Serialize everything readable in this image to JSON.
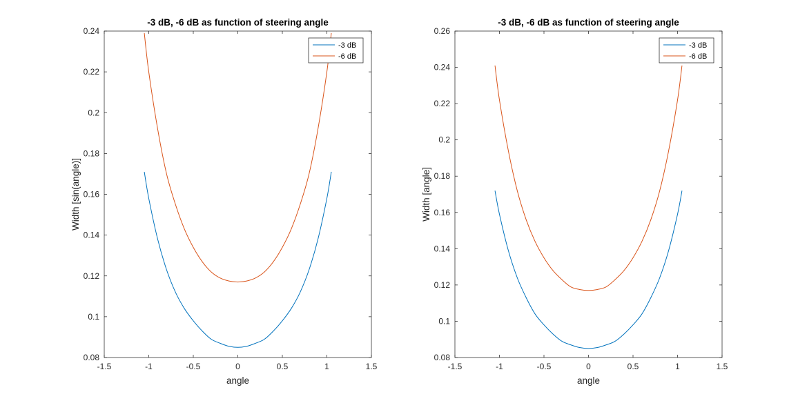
{
  "chart_data": [
    {
      "type": "line",
      "title": "-3 dB, -6 dB as function of steering angle",
      "xlabel": "angle",
      "ylabel": "Width [sin(angle)]",
      "xlim": [
        -1.5,
        1.5
      ],
      "ylim": [
        0.08,
        0.24
      ],
      "xticks": [
        -1.5,
        -1,
        -0.5,
        0,
        0.5,
        1,
        1.5
      ],
      "xtick_labels": [
        "-1.5",
        "-1",
        "-0.5",
        "0",
        "0.5",
        "1",
        "1.5"
      ],
      "yticks": [
        0.08,
        0.1,
        0.12,
        0.14,
        0.16,
        0.18,
        0.2,
        0.22,
        0.24
      ],
      "ytick_labels": [
        "0.08",
        "0.1",
        "0.12",
        "0.14",
        "0.16",
        "0.18",
        "0.2",
        "0.22",
        "0.24"
      ],
      "grid": false,
      "legend_position": "top-right",
      "series": [
        {
          "name": "-3 dB",
          "color": "#0072BD",
          "x": [
            -1.05,
            -1.0,
            -0.9,
            -0.8,
            -0.7,
            -0.6,
            -0.5,
            -0.4,
            -0.3,
            -0.2,
            -0.1,
            0,
            0.1,
            0.2,
            0.3,
            0.4,
            0.5,
            0.6,
            0.7,
            0.8,
            0.9,
            1.0,
            1.05
          ],
          "y": [
            0.171,
            0.158,
            0.138,
            0.123,
            0.112,
            0.104,
            0.098,
            0.093,
            0.089,
            0.087,
            0.0855,
            0.085,
            0.0855,
            0.087,
            0.089,
            0.093,
            0.098,
            0.104,
            0.112,
            0.123,
            0.138,
            0.158,
            0.171
          ]
        },
        {
          "name": "-6 dB",
          "color": "#D95319",
          "x": [
            -1.05,
            -1.0,
            -0.9,
            -0.8,
            -0.7,
            -0.6,
            -0.5,
            -0.4,
            -0.3,
            -0.2,
            -0.1,
            0,
            0.1,
            0.2,
            0.3,
            0.4,
            0.5,
            0.6,
            0.7,
            0.8,
            0.9,
            1.0,
            1.05
          ],
          "y": [
            0.239,
            0.22,
            0.192,
            0.17,
            0.155,
            0.143,
            0.134,
            0.127,
            0.122,
            0.119,
            0.1175,
            0.117,
            0.1175,
            0.119,
            0.122,
            0.127,
            0.134,
            0.143,
            0.155,
            0.17,
            0.192,
            0.22,
            0.239
          ]
        }
      ]
    },
    {
      "type": "line",
      "title": "-3 dB, -6 dB as function of steering angle",
      "xlabel": "angle",
      "ylabel": "Width [angle]",
      "xlim": [
        -1.5,
        1.5
      ],
      "ylim": [
        0.08,
        0.26
      ],
      "xticks": [
        -1.5,
        -1,
        -0.5,
        0,
        0.5,
        1,
        1.5
      ],
      "xtick_labels": [
        "-1.5",
        "-1",
        "-0.5",
        "0",
        "0.5",
        "1",
        "1.5"
      ],
      "yticks": [
        0.08,
        0.1,
        0.12,
        0.14,
        0.16,
        0.18,
        0.2,
        0.22,
        0.24,
        0.26
      ],
      "ytick_labels": [
        "0.08",
        "0.1",
        "0.12",
        "0.14",
        "0.16",
        "0.18",
        "0.2",
        "0.22",
        "0.24",
        "0.26"
      ],
      "grid": false,
      "legend_position": "top-right",
      "series": [
        {
          "name": "-3 dB",
          "color": "#0072BD",
          "x": [
            -1.05,
            -1.0,
            -0.9,
            -0.8,
            -0.7,
            -0.6,
            -0.5,
            -0.4,
            -0.3,
            -0.2,
            -0.1,
            0,
            0.1,
            0.2,
            0.3,
            0.4,
            0.5,
            0.6,
            0.7,
            0.8,
            0.9,
            1.0,
            1.05
          ],
          "y": [
            0.172,
            0.159,
            0.139,
            0.124,
            0.113,
            0.104,
            0.098,
            0.093,
            0.089,
            0.087,
            0.0855,
            0.085,
            0.0855,
            0.087,
            0.089,
            0.093,
            0.098,
            0.104,
            0.113,
            0.124,
            0.139,
            0.159,
            0.172
          ]
        },
        {
          "name": "-6 dB",
          "color": "#D95319",
          "x": [
            -1.05,
            -1.0,
            -0.9,
            -0.8,
            -0.7,
            -0.6,
            -0.5,
            -0.4,
            -0.3,
            -0.2,
            -0.1,
            0,
            0.1,
            0.2,
            0.3,
            0.4,
            0.5,
            0.6,
            0.7,
            0.8,
            0.9,
            1.0,
            1.05
          ],
          "y": [
            0.241,
            0.222,
            0.194,
            0.172,
            0.156,
            0.144,
            0.135,
            0.128,
            0.123,
            0.119,
            0.1175,
            0.117,
            0.1175,
            0.119,
            0.123,
            0.128,
            0.135,
            0.144,
            0.156,
            0.172,
            0.194,
            0.222,
            0.241
          ]
        }
      ]
    }
  ]
}
